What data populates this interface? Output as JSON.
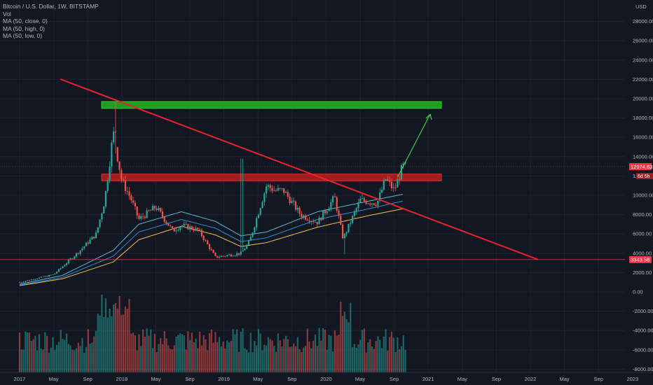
{
  "legend": {
    "symbol": "Bitcoin / U.S. Dollar, 1W, BITSTAMP",
    "volume": "Vol",
    "ma_close": "MA (50, close, 0)",
    "ma_high": "MA (50, high, 0)",
    "ma_low": "MA (50, low, 0)"
  },
  "currency": "USD",
  "badges": {
    "last_price": "12974.63",
    "countdown": "6d 5h",
    "support_line": "3343.58",
    "partial_tick": "126"
  },
  "colors": {
    "background": "#131722",
    "up": "#26a69a",
    "down": "#ef5350",
    "trendline": "#e8232d",
    "support": "#f23645",
    "green_zone": "#1e9e1e",
    "red_zone": "#b21e1e",
    "arrow": "#3cd43c",
    "ma_close": "#2e8ad6",
    "ma_high": "#5fb7d4",
    "ma_low": "#f2c057"
  },
  "chart_data": {
    "type": "candlestick",
    "title": "Bitcoin / U.S. Dollar, 1W, BITSTAMP",
    "y_axis_ticks": [
      "28000.00",
      "26000.00",
      "24000.00",
      "22000.00",
      "20000.00",
      "18000.00",
      "16000.00",
      "14000.00",
      "12000.00",
      "10000.00",
      "8000.00",
      "6000.00",
      "4000.00",
      "2000.00",
      "0.00",
      "-2000.00",
      "-4000.00",
      "-6000.00",
      "-8000.00"
    ],
    "x_axis_ticks": [
      "2017",
      "May",
      "Sep",
      "2018",
      "May",
      "Sep",
      "2019",
      "May",
      "Sep",
      "2020",
      "May",
      "Sep",
      "2021",
      "May",
      "Sep",
      "2022",
      "May",
      "Sep",
      "2023"
    ],
    "ylim": [
      -8000,
      28000
    ],
    "price_anchors": [
      {
        "date": "2017-01",
        "price": 1000
      },
      {
        "date": "2017-05",
        "price": 1800
      },
      {
        "date": "2017-08",
        "price": 4200
      },
      {
        "date": "2017-10",
        "price": 6000
      },
      {
        "date": "2017-11",
        "price": 9500
      },
      {
        "date": "2017-12",
        "price": 16500
      },
      {
        "date": "2018-01",
        "price": 11500
      },
      {
        "date": "2018-02",
        "price": 9800
      },
      {
        "date": "2018-03",
        "price": 7500
      },
      {
        "date": "2018-05",
        "price": 8800
      },
      {
        "date": "2018-07",
        "price": 6300
      },
      {
        "date": "2018-08",
        "price": 6900
      },
      {
        "date": "2018-10",
        "price": 6400
      },
      {
        "date": "2018-12",
        "price": 3600
      },
      {
        "date": "2019-03",
        "price": 4000
      },
      {
        "date": "2019-04",
        "price": 5200
      },
      {
        "date": "2019-06",
        "price": 11000
      },
      {
        "date": "2019-07",
        "price": 10500
      },
      {
        "date": "2019-08",
        "price": 10500
      },
      {
        "date": "2019-10",
        "price": 8000
      },
      {
        "date": "2019-12",
        "price": 7200
      },
      {
        "date": "2020-02",
        "price": 9800
      },
      {
        "date": "2020-03",
        "price": 5500
      },
      {
        "date": "2020-05",
        "price": 9500
      },
      {
        "date": "2020-07",
        "price": 9200
      },
      {
        "date": "2020-08",
        "price": 11700
      },
      {
        "date": "2020-09",
        "price": 10500
      },
      {
        "date": "2020-10",
        "price": 12974
      }
    ],
    "ma_close": [
      {
        "date": "2017-01",
        "price": 700
      },
      {
        "date": "2017-06",
        "price": 1500
      },
      {
        "date": "2017-12",
        "price": 3700
      },
      {
        "date": "2018-03",
        "price": 6200
      },
      {
        "date": "2018-08",
        "price": 7500
      },
      {
        "date": "2018-12",
        "price": 6600
      },
      {
        "date": "2019-03",
        "price": 5200
      },
      {
        "date": "2019-06",
        "price": 5600
      },
      {
        "date": "2019-12",
        "price": 7500
      },
      {
        "date": "2020-06",
        "price": 8600
      },
      {
        "date": "2020-10",
        "price": 9400
      }
    ],
    "ma_high": [
      {
        "date": "2017-01",
        "price": 800
      },
      {
        "date": "2017-06",
        "price": 1700
      },
      {
        "date": "2017-12",
        "price": 4300
      },
      {
        "date": "2018-03",
        "price": 7000
      },
      {
        "date": "2018-08",
        "price": 8300
      },
      {
        "date": "2018-12",
        "price": 7300
      },
      {
        "date": "2019-03",
        "price": 5800
      },
      {
        "date": "2019-06",
        "price": 6200
      },
      {
        "date": "2019-12",
        "price": 8300
      },
      {
        "date": "2020-06",
        "price": 9400
      },
      {
        "date": "2020-10",
        "price": 10100
      }
    ],
    "ma_low": [
      {
        "date": "2017-01",
        "price": 650
      },
      {
        "date": "2017-06",
        "price": 1350
      },
      {
        "date": "2017-12",
        "price": 3100
      },
      {
        "date": "2018-03",
        "price": 5400
      },
      {
        "date": "2018-08",
        "price": 6800
      },
      {
        "date": "2018-12",
        "price": 5900
      },
      {
        "date": "2019-03",
        "price": 4700
      },
      {
        "date": "2019-06",
        "price": 5100
      },
      {
        "date": "2019-12",
        "price": 6700
      },
      {
        "date": "2020-06",
        "price": 7900
      },
      {
        "date": "2020-10",
        "price": 8600
      }
    ],
    "drawings": {
      "green_zone": {
        "price_low": 19000,
        "price_high": 19700,
        "date_start": "2017-12",
        "date_end": "2021-03"
      },
      "red_zone": {
        "price_low": 11500,
        "price_high": 12200,
        "date_start": "2017-12",
        "date_end": "2020-12"
      },
      "trendline": {
        "from": {
          "date": "2017-05",
          "price": 21800
        },
        "to": {
          "date": "2022-03",
          "price": 3343.58
        }
      },
      "support_line_price": 3343.58,
      "last_price_line": 12974.63,
      "arrow": {
        "from": {
          "date": "2020-10",
          "price": 11700
        },
        "to": {
          "date": "2020-12",
          "price": 18000
        }
      }
    },
    "grid": true
  }
}
